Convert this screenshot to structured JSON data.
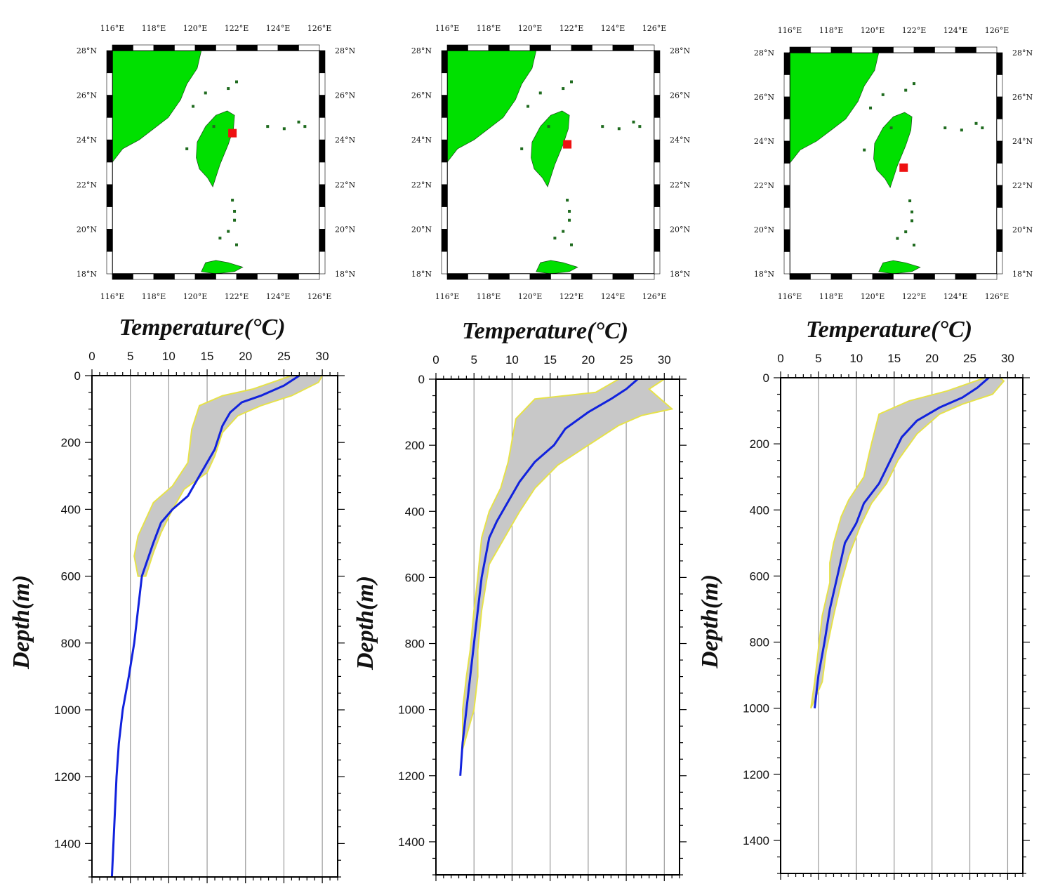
{
  "colors": {
    "land": "#00e000",
    "station": "#ee1111",
    "profile_line": "#1122dd",
    "envelope_fill": "#c8c8c8",
    "envelope_edge": "#e6e24a",
    "grid": "#9a9a9a"
  },
  "map": {
    "lon_ticks": [
      "116°E",
      "118°E",
      "120°E",
      "122°E",
      "124°E",
      "126°E"
    ],
    "lat_ticks": [
      "28°N",
      "26°N",
      "24°N",
      "22°N",
      "20°N",
      "18°N"
    ],
    "lon_range": [
      116,
      126
    ],
    "lat_range": [
      18,
      28
    ]
  },
  "chart_data": [
    {
      "type": "line",
      "xlabel": "Temperature(°C)",
      "ylabel": "Depth(m)",
      "xlim": [
        0,
        32
      ],
      "ylim": [
        1500,
        0
      ],
      "x_ticks": [
        0,
        5,
        10,
        15,
        20,
        25,
        30
      ],
      "y_ticks": [
        0,
        200,
        400,
        600,
        800,
        1000,
        1200,
        1400
      ],
      "grid": "vertical",
      "station": {
        "lon": 121.8,
        "lat": 24.3
      },
      "series": [
        {
          "role": "mean",
          "points": [
            [
              27,
              0
            ],
            [
              25,
              30
            ],
            [
              22,
              60
            ],
            [
              19.5,
              80
            ],
            [
              18,
              110
            ],
            [
              17,
              150
            ],
            [
              16,
              220
            ],
            [
              14,
              300
            ],
            [
              12.5,
              360
            ],
            [
              10.5,
              400
            ],
            [
              9,
              440
            ],
            [
              8,
              500
            ],
            [
              6.5,
              600
            ],
            [
              6,
              700
            ],
            [
              5.5,
              800
            ],
            [
              4.8,
              900
            ],
            [
              4,
              1000
            ],
            [
              3.5,
              1100
            ],
            [
              3.2,
              1200
            ],
            [
              3,
              1300
            ],
            [
              2.8,
              1400
            ],
            [
              2.6,
              1500
            ]
          ]
        },
        {
          "role": "lower",
          "points": [
            [
              26,
              0
            ],
            [
              21,
              40
            ],
            [
              17,
              60
            ],
            [
              14,
              90
            ],
            [
              13,
              160
            ],
            [
              12.5,
              260
            ],
            [
              10.5,
              330
            ],
            [
              8,
              380
            ],
            [
              7,
              430
            ],
            [
              6,
              480
            ],
            [
              5.5,
              540
            ],
            [
              6,
              600
            ]
          ]
        },
        {
          "role": "upper",
          "points": [
            [
              30,
              0
            ],
            [
              29.5,
              20
            ],
            [
              26,
              60
            ],
            [
              22,
              90
            ],
            [
              19,
              120
            ],
            [
              17,
              170
            ],
            [
              16,
              240
            ],
            [
              15,
              290
            ],
            [
              12,
              340
            ],
            [
              10.5,
              400
            ],
            [
              9,
              470
            ],
            [
              8,
              530
            ],
            [
              7,
              600
            ]
          ]
        }
      ]
    },
    {
      "type": "line",
      "xlabel": "Temperature(°C)",
      "ylabel": "Depth(m)",
      "xlim": [
        0,
        32
      ],
      "ylim": [
        1500,
        0
      ],
      "x_ticks": [
        0,
        5,
        10,
        15,
        20,
        25,
        30
      ],
      "y_ticks": [
        0,
        200,
        400,
        600,
        800,
        1000,
        1200,
        1400
      ],
      "grid": "vertical",
      "station": {
        "lon": 121.8,
        "lat": 23.8
      },
      "series": [
        {
          "role": "mean",
          "points": [
            [
              26.5,
              0
            ],
            [
              25,
              30
            ],
            [
              23,
              60
            ],
            [
              20,
              100
            ],
            [
              17,
              150
            ],
            [
              15.5,
              200
            ],
            [
              13,
              250
            ],
            [
              11,
              310
            ],
            [
              9.5,
              370
            ],
            [
              8,
              430
            ],
            [
              7,
              480
            ],
            [
              6,
              600
            ],
            [
              5.5,
              700
            ],
            [
              5,
              800
            ],
            [
              4.5,
              900
            ],
            [
              4,
              1000
            ],
            [
              3.5,
              1100
            ],
            [
              3.2,
              1200
            ]
          ]
        },
        {
          "role": "lower",
          "points": [
            [
              24,
              0
            ],
            [
              21,
              40
            ],
            [
              13,
              60
            ],
            [
              10.5,
              120
            ],
            [
              9.5,
              250
            ],
            [
              8.5,
              330
            ],
            [
              7,
              400
            ],
            [
              6,
              480
            ],
            [
              5.5,
              600
            ],
            [
              5,
              700
            ],
            [
              4.5,
              820
            ],
            [
              4,
              900
            ],
            [
              3.5,
              1000
            ],
            [
              3.5,
              1120
            ]
          ]
        },
        {
          "role": "upper",
          "points": [
            [
              30,
              0
            ],
            [
              28,
              30
            ],
            [
              31,
              90
            ],
            [
              27,
              110
            ],
            [
              24,
              140
            ],
            [
              20,
              200
            ],
            [
              16,
              260
            ],
            [
              13,
              330
            ],
            [
              11,
              400
            ],
            [
              9,
              480
            ],
            [
              7,
              560
            ],
            [
              6,
              700
            ],
            [
              5.5,
              820
            ],
            [
              5.5,
              900
            ],
            [
              5,
              1000
            ]
          ]
        }
      ]
    },
    {
      "type": "line",
      "xlabel": "Temperature(°C)",
      "ylabel": "Depth(m)",
      "xlim": [
        0,
        32
      ],
      "ylim": [
        1500,
        0
      ],
      "x_ticks": [
        0,
        5,
        10,
        15,
        20,
        25,
        30
      ],
      "y_ticks": [
        0,
        200,
        400,
        600,
        800,
        1000,
        1200,
        1400
      ],
      "grid": "vertical",
      "station": {
        "lon": 121.5,
        "lat": 22.8
      },
      "series": [
        {
          "role": "mean",
          "points": [
            [
              27.5,
              0
            ],
            [
              26,
              30
            ],
            [
              24,
              60
            ],
            [
              21,
              90
            ],
            [
              18,
              130
            ],
            [
              16,
              180
            ],
            [
              14.5,
              250
            ],
            [
              13,
              320
            ],
            [
              11,
              380
            ],
            [
              10,
              440
            ],
            [
              8.5,
              500
            ],
            [
              7.5,
              600
            ],
            [
              6.5,
              700
            ],
            [
              5.8,
              800
            ],
            [
              5,
              900
            ],
            [
              4.5,
              1000
            ]
          ]
        },
        {
          "role": "lower",
          "points": [
            [
              27,
              0
            ],
            [
              22,
              40
            ],
            [
              17,
              70
            ],
            [
              13,
              110
            ],
            [
              12,
              200
            ],
            [
              11,
              300
            ],
            [
              9,
              370
            ],
            [
              8,
              420
            ],
            [
              7,
              500
            ],
            [
              6.5,
              560
            ],
            [
              6.5,
              620
            ],
            [
              5.5,
              720
            ],
            [
              5,
              820
            ],
            [
              4.5,
              920
            ],
            [
              4,
              1000
            ]
          ]
        },
        {
          "role": "upper",
          "points": [
            [
              29,
              0
            ],
            [
              29.5,
              10
            ],
            [
              28,
              50
            ],
            [
              24,
              80
            ],
            [
              21,
              110
            ],
            [
              18,
              170
            ],
            [
              15.5,
              250
            ],
            [
              14,
              320
            ],
            [
              12,
              380
            ],
            [
              10.5,
              450
            ],
            [
              9,
              540
            ],
            [
              8,
              620
            ],
            [
              7,
              720
            ],
            [
              6,
              830
            ],
            [
              5.5,
              920
            ]
          ]
        }
      ]
    }
  ]
}
